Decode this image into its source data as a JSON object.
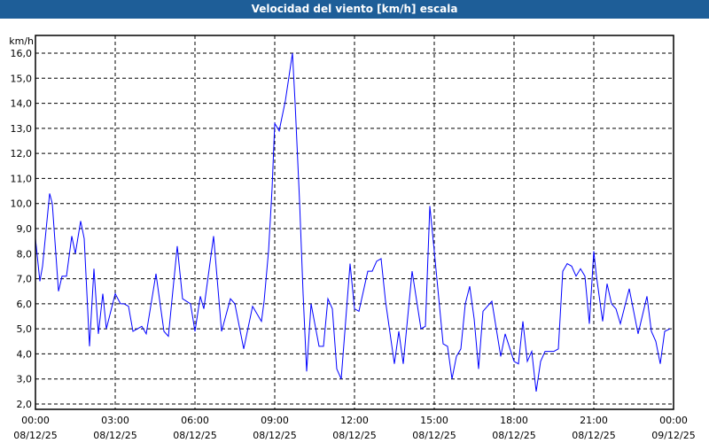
{
  "chart_data": {
    "type": "line",
    "title": "Velocidad del viento [km/h] escala",
    "ylabel": "km/h",
    "xlabel": "",
    "ylim": [
      2.0,
      16.0
    ],
    "yticks": [
      "2,0",
      "3,0",
      "4,0",
      "5,0",
      "6,0",
      "7,0",
      "8,0",
      "9,0",
      "10,0",
      "11,0",
      "12,0",
      "13,0",
      "14,0",
      "15,0",
      "16,0"
    ],
    "xticks": [
      {
        "time": "00:00",
        "date": "08/12/25"
      },
      {
        "time": "03:00",
        "date": "08/12/25"
      },
      {
        "time": "06:00",
        "date": "08/12/25"
      },
      {
        "time": "09:00",
        "date": "08/12/25"
      },
      {
        "time": "12:00",
        "date": "08/12/25"
      },
      {
        "time": "15:00",
        "date": "08/12/25"
      },
      {
        "time": "18:00",
        "date": "08/12/25"
      },
      {
        "time": "21:00",
        "date": "08/12/25"
      },
      {
        "time": "00:00",
        "date": "09/12/25"
      }
    ],
    "xlim": [
      "08/12/25 00:00",
      "09/12/25 00:00"
    ],
    "grid": true,
    "line_color": "#0000ff",
    "title_bar_color": "#1e5e98",
    "series": [
      {
        "x": [
          "00:00",
          "00:10",
          "00:16",
          "00:32",
          "00:38",
          "00:52",
          "01:00",
          "01:10",
          "01:22",
          "01:30",
          "01:42",
          "01:50",
          "02:02",
          "02:12",
          "02:22",
          "02:32",
          "02:40",
          "03:00",
          "03:12",
          "03:20",
          "03:30",
          "03:40",
          "04:00",
          "04:10",
          "04:32",
          "04:50",
          "05:00",
          "05:20",
          "05:32",
          "05:50",
          "06:00",
          "06:12",
          "06:20",
          "06:42",
          "07:00",
          "07:20",
          "07:30",
          "07:50",
          "08:10",
          "08:30",
          "08:36",
          "08:46",
          "08:54",
          "09:00",
          "09:10",
          "09:24",
          "09:40",
          "09:46",
          "09:56",
          "10:04",
          "10:12",
          "10:22",
          "10:40",
          "10:50",
          "11:00",
          "11:10",
          "11:20",
          "11:30",
          "11:50",
          "12:00",
          "12:10",
          "12:30",
          "12:40",
          "12:50",
          "13:00",
          "13:10",
          "13:30",
          "13:40",
          "13:50",
          "14:10",
          "14:30",
          "14:40",
          "14:50",
          "15:00",
          "15:20",
          "15:30",
          "15:40",
          "15:50",
          "16:00",
          "16:10",
          "16:20",
          "16:30",
          "16:40",
          "16:50",
          "17:10",
          "17:30",
          "17:40",
          "18:00",
          "18:10",
          "18:20",
          "18:30",
          "18:40",
          "18:50",
          "19:00",
          "19:10",
          "19:30",
          "19:40",
          "19:50",
          "20:00",
          "20:10",
          "20:20",
          "20:30",
          "20:40",
          "20:50",
          "21:00",
          "21:06",
          "21:20",
          "21:30",
          "21:40",
          "21:50",
          "22:00",
          "22:20",
          "22:40",
          "23:00",
          "23:10",
          "23:20",
          "23:30",
          "23:40",
          "23:52"
        ],
        "y": [
          8.6,
          6.9,
          7.5,
          10.4,
          10.0,
          6.5,
          7.1,
          7.1,
          8.7,
          8.0,
          9.3,
          8.6,
          4.3,
          7.4,
          4.8,
          6.4,
          5.0,
          6.4,
          6.0,
          6.0,
          5.9,
          4.9,
          5.1,
          4.8,
          7.2,
          4.9,
          4.7,
          8.3,
          6.2,
          6.0,
          4.9,
          6.3,
          5.8,
          8.7,
          4.9,
          6.2,
          6.0,
          4.2,
          5.9,
          5.3,
          6.1,
          8.1,
          10.6,
          13.2,
          12.9,
          14.1,
          16.0,
          14.0,
          10.1,
          6.4,
          3.3,
          6.0,
          4.3,
          4.3,
          6.2,
          5.8,
          3.4,
          3.0,
          7.6,
          5.8,
          5.7,
          7.3,
          7.3,
          7.7,
          7.8,
          6.1,
          3.6,
          4.9,
          3.6,
          7.3,
          5.0,
          5.1,
          9.9,
          8.1,
          4.4,
          4.3,
          3.0,
          3.9,
          4.2,
          6.0,
          6.7,
          5.4,
          3.4,
          5.7,
          6.1,
          3.9,
          4.8,
          3.7,
          3.6,
          5.3,
          3.7,
          4.1,
          2.5,
          3.7,
          4.1,
          4.1,
          4.2,
          7.3,
          7.6,
          7.5,
          7.1,
          7.4,
          7.1,
          5.2,
          8.1,
          7.1,
          5.3,
          6.8,
          6.0,
          5.8,
          5.2,
          6.6,
          4.8,
          6.3,
          4.9,
          4.5,
          3.6,
          4.9,
          5.0
        ]
      }
    ]
  }
}
